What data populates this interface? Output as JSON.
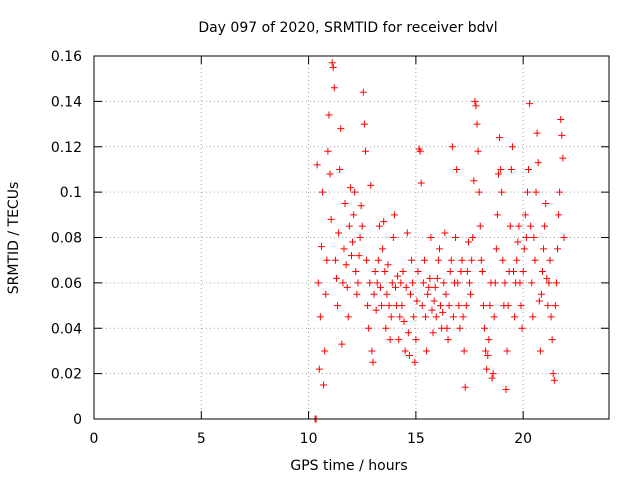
{
  "chart_data": {
    "type": "scatter",
    "title": "Day 097 of 2020, SRMTID for receiver bdvl",
    "xlabel": "GPS time / hours",
    "ylabel": "SRMTID / TECUs",
    "xlim": [
      0,
      24
    ],
    "ylim": [
      0,
      0.16
    ],
    "xticks": [
      0,
      5,
      10,
      15,
      20
    ],
    "xtick_labels": [
      "0",
      "5",
      "10",
      "15",
      "20"
    ],
    "yticks": [
      0,
      0.02,
      0.04,
      0.06,
      0.08,
      0.1,
      0.12,
      0.14,
      0.16
    ],
    "ytick_labels": [
      "0",
      "0.02",
      "0.04",
      "0.06",
      "0.08",
      "0.1",
      "0.12",
      "0.14",
      "0.16"
    ],
    "grid": true,
    "marker": "+",
    "series": [
      {
        "name": "SRMTID",
        "color": "#ff0000",
        "points": [
          [
            10.3,
            0.0
          ],
          [
            10.35,
            0.0
          ],
          [
            10.4,
            0.112
          ],
          [
            10.45,
            0.06
          ],
          [
            10.5,
            0.022
          ],
          [
            10.55,
            0.045
          ],
          [
            10.6,
            0.076
          ],
          [
            10.65,
            0.1
          ],
          [
            10.7,
            0.015
          ],
          [
            10.75,
            0.03
          ],
          [
            10.8,
            0.055
          ],
          [
            10.85,
            0.07
          ],
          [
            10.9,
            0.118
          ],
          [
            10.95,
            0.134
          ],
          [
            11.0,
            0.108
          ],
          [
            11.05,
            0.088
          ],
          [
            11.1,
            0.157
          ],
          [
            11.15,
            0.155
          ],
          [
            11.2,
            0.146
          ],
          [
            11.25,
            0.07
          ],
          [
            11.3,
            0.062
          ],
          [
            11.35,
            0.05
          ],
          [
            11.4,
            0.082
          ],
          [
            11.45,
            0.11
          ],
          [
            11.5,
            0.128
          ],
          [
            11.55,
            0.033
          ],
          [
            11.6,
            0.06
          ],
          [
            11.65,
            0.075
          ],
          [
            11.7,
            0.095
          ],
          [
            11.75,
            0.068
          ],
          [
            11.8,
            0.058
          ],
          [
            11.85,
            0.045
          ],
          [
            11.9,
            0.085
          ],
          [
            11.95,
            0.102
          ],
          [
            12.0,
            0.072
          ],
          [
            12.05,
            0.078
          ],
          [
            12.1,
            0.09
          ],
          [
            12.15,
            0.1
          ],
          [
            12.2,
            0.065
          ],
          [
            12.25,
            0.055
          ],
          [
            12.3,
            0.06
          ],
          [
            12.35,
            0.072
          ],
          [
            12.4,
            0.08
          ],
          [
            12.45,
            0.094
          ],
          [
            12.5,
            0.085
          ],
          [
            12.55,
            0.144
          ],
          [
            12.6,
            0.13
          ],
          [
            12.65,
            0.118
          ],
          [
            12.7,
            0.07
          ],
          [
            12.75,
            0.05
          ],
          [
            12.8,
            0.04
          ],
          [
            12.85,
            0.06
          ],
          [
            12.9,
            0.103
          ],
          [
            12.95,
            0.03
          ],
          [
            13.0,
            0.025
          ],
          [
            13.05,
            0.055
          ],
          [
            13.1,
            0.065
          ],
          [
            13.15,
            0.048
          ],
          [
            13.2,
            0.06
          ],
          [
            13.25,
            0.07
          ],
          [
            13.3,
            0.085
          ],
          [
            13.35,
            0.058
          ],
          [
            13.4,
            0.05
          ],
          [
            13.45,
            0.075
          ],
          [
            13.5,
            0.087
          ],
          [
            13.55,
            0.065
          ],
          [
            13.6,
            0.04
          ],
          [
            13.65,
            0.055
          ],
          [
            13.7,
            0.068
          ],
          [
            13.75,
            0.05
          ],
          [
            13.8,
            0.035
          ],
          [
            13.85,
            0.045
          ],
          [
            13.9,
            0.06
          ],
          [
            13.95,
            0.08
          ],
          [
            14.0,
            0.09
          ],
          [
            14.05,
            0.058
          ],
          [
            14.1,
            0.05
          ],
          [
            14.15,
            0.063
          ],
          [
            14.2,
            0.035
          ],
          [
            14.25,
            0.045
          ],
          [
            14.3,
            0.06
          ],
          [
            14.35,
            0.05
          ],
          [
            14.4,
            0.065
          ],
          [
            14.45,
            0.043
          ],
          [
            14.5,
            0.03
          ],
          [
            14.55,
            0.058
          ],
          [
            14.6,
            0.082
          ],
          [
            14.65,
            0.038
          ],
          [
            14.7,
            0.028
          ],
          [
            14.75,
            0.055
          ],
          [
            14.8,
            0.07
          ],
          [
            14.85,
            0.06
          ],
          [
            14.9,
            0.045
          ],
          [
            14.95,
            0.025
          ],
          [
            15.0,
            0.035
          ],
          [
            15.05,
            0.052
          ],
          [
            15.1,
            0.065
          ],
          [
            15.15,
            0.119
          ],
          [
            15.2,
            0.118
          ],
          [
            15.25,
            0.104
          ],
          [
            15.3,
            0.05
          ],
          [
            15.35,
            0.06
          ],
          [
            15.4,
            0.07
          ],
          [
            15.45,
            0.045
          ],
          [
            15.5,
            0.03
          ],
          [
            15.55,
            0.055
          ],
          [
            15.6,
            0.058
          ],
          [
            15.65,
            0.062
          ],
          [
            15.7,
            0.08
          ],
          [
            15.75,
            0.048
          ],
          [
            15.8,
            0.038
          ],
          [
            15.85,
            0.052
          ],
          [
            15.9,
            0.058
          ],
          [
            15.95,
            0.045
          ],
          [
            16.0,
            0.062
          ],
          [
            16.05,
            0.07
          ],
          [
            16.1,
            0.075
          ],
          [
            16.15,
            0.05
          ],
          [
            16.2,
            0.04
          ],
          [
            16.25,
            0.047
          ],
          [
            16.3,
            0.06
          ],
          [
            16.35,
            0.082
          ],
          [
            16.4,
            0.055
          ],
          [
            16.45,
            0.04
          ],
          [
            16.5,
            0.035
          ],
          [
            16.55,
            0.05
          ],
          [
            16.6,
            0.065
          ],
          [
            16.65,
            0.07
          ],
          [
            16.7,
            0.12
          ],
          [
            16.75,
            0.045
          ],
          [
            16.8,
            0.06
          ],
          [
            16.85,
            0.08
          ],
          [
            16.9,
            0.11
          ],
          [
            16.95,
            0.06
          ],
          [
            17.0,
            0.05
          ],
          [
            17.05,
            0.04
          ],
          [
            17.1,
            0.065
          ],
          [
            17.15,
            0.07
          ],
          [
            17.2,
            0.045
          ],
          [
            17.25,
            0.03
          ],
          [
            17.3,
            0.014
          ],
          [
            17.35,
            0.05
          ],
          [
            17.4,
            0.065
          ],
          [
            17.45,
            0.078
          ],
          [
            17.5,
            0.06
          ],
          [
            17.55,
            0.055
          ],
          [
            17.6,
            0.07
          ],
          [
            17.65,
            0.08
          ],
          [
            17.7,
            0.105
          ],
          [
            17.75,
            0.14
          ],
          [
            17.8,
            0.138
          ],
          [
            17.85,
            0.13
          ],
          [
            17.9,
            0.118
          ],
          [
            17.95,
            0.1
          ],
          [
            18.0,
            0.085
          ],
          [
            18.05,
            0.07
          ],
          [
            18.1,
            0.065
          ],
          [
            18.15,
            0.05
          ],
          [
            18.2,
            0.04
          ],
          [
            18.25,
            0.03
          ],
          [
            18.3,
            0.022
          ],
          [
            18.35,
            0.028
          ],
          [
            18.4,
            0.035
          ],
          [
            18.45,
            0.05
          ],
          [
            18.5,
            0.06
          ],
          [
            18.55,
            0.018
          ],
          [
            18.6,
            0.02
          ],
          [
            18.65,
            0.045
          ],
          [
            18.7,
            0.06
          ],
          [
            18.75,
            0.075
          ],
          [
            18.8,
            0.09
          ],
          [
            18.85,
            0.108
          ],
          [
            18.9,
            0.124
          ],
          [
            18.95,
            0.11
          ],
          [
            19.0,
            0.1
          ],
          [
            19.05,
            0.07
          ],
          [
            19.1,
            0.05
          ],
          [
            19.15,
            0.06
          ],
          [
            19.2,
            0.013
          ],
          [
            19.25,
            0.03
          ],
          [
            19.3,
            0.05
          ],
          [
            19.35,
            0.065
          ],
          [
            19.4,
            0.085
          ],
          [
            19.45,
            0.11
          ],
          [
            19.5,
            0.12
          ],
          [
            19.55,
            0.065
          ],
          [
            19.6,
            0.045
          ],
          [
            19.65,
            0.06
          ],
          [
            19.7,
            0.07
          ],
          [
            19.75,
            0.078
          ],
          [
            19.8,
            0.085
          ],
          [
            19.85,
            0.06
          ],
          [
            19.9,
            0.05
          ],
          [
            19.95,
            0.04
          ],
          [
            20.0,
            0.065
          ],
          [
            20.05,
            0.075
          ],
          [
            20.1,
            0.09
          ],
          [
            20.15,
            0.08
          ],
          [
            20.2,
            0.1
          ],
          [
            20.25,
            0.11
          ],
          [
            20.3,
            0.139
          ],
          [
            20.35,
            0.085
          ],
          [
            20.4,
            0.06
          ],
          [
            20.45,
            0.045
          ],
          [
            20.5,
            0.08
          ],
          [
            20.55,
            0.07
          ],
          [
            20.6,
            0.1
          ],
          [
            20.65,
            0.126
          ],
          [
            20.7,
            0.113
          ],
          [
            20.75,
            0.052
          ],
          [
            20.8,
            0.03
          ],
          [
            20.85,
            0.055
          ],
          [
            20.9,
            0.065
          ],
          [
            20.95,
            0.075
          ],
          [
            21.0,
            0.085
          ],
          [
            21.05,
            0.095
          ],
          [
            21.1,
            0.062
          ],
          [
            21.15,
            0.05
          ],
          [
            21.2,
            0.06
          ],
          [
            21.25,
            0.07
          ],
          [
            21.3,
            0.045
          ],
          [
            21.35,
            0.035
          ],
          [
            21.4,
            0.02
          ],
          [
            21.45,
            0.017
          ],
          [
            21.5,
            0.05
          ],
          [
            21.55,
            0.06
          ],
          [
            21.6,
            0.075
          ],
          [
            21.65,
            0.09
          ],
          [
            21.7,
            0.1
          ],
          [
            21.75,
            0.132
          ],
          [
            21.8,
            0.125
          ],
          [
            21.85,
            0.115
          ],
          [
            21.9,
            0.08
          ]
        ]
      }
    ]
  }
}
